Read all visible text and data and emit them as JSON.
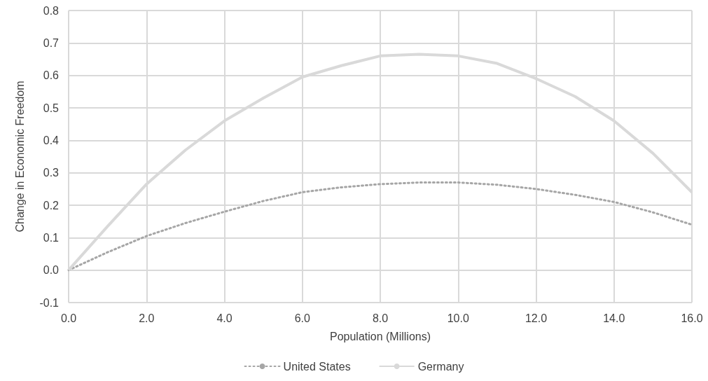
{
  "chart_data": {
    "type": "line",
    "xlabel": "Population (Millions)",
    "ylabel": "Change in Economic Freedom",
    "xlim": [
      0,
      16
    ],
    "ylim": [
      -0.1,
      0.8
    ],
    "xticks": [
      {
        "value": 0,
        "label": "0.0"
      },
      {
        "value": 2,
        "label": "2.0"
      },
      {
        "value": 4,
        "label": "4.0"
      },
      {
        "value": 6,
        "label": "6.0"
      },
      {
        "value": 8,
        "label": "8.0"
      },
      {
        "value": 10,
        "label": "10.0"
      },
      {
        "value": 12,
        "label": "12.0"
      },
      {
        "value": 14,
        "label": "14.0"
      },
      {
        "value": 16,
        "label": "16.0"
      }
    ],
    "yticks": [
      {
        "value": -0.1,
        "label": "-0.1"
      },
      {
        "value": 0,
        "label": "0.0"
      },
      {
        "value": 0.1,
        "label": "0.1"
      },
      {
        "value": 0.2,
        "label": "0.2"
      },
      {
        "value": 0.3,
        "label": "0.3"
      },
      {
        "value": 0.4,
        "label": "0.4"
      },
      {
        "value": 0.5,
        "label": "0.5"
      },
      {
        "value": 0.6,
        "label": "0.6"
      },
      {
        "value": 0.7,
        "label": "0.7"
      },
      {
        "value": 0.8,
        "label": "0.8"
      }
    ],
    "grid": true,
    "legend": "bottom",
    "marker": "none",
    "series": [
      {
        "name": "United States",
        "color": "#a6a6a6",
        "line_style": "dotted",
        "x": [
          0,
          1,
          2,
          3,
          4,
          5,
          6,
          7,
          8,
          9,
          10,
          11,
          12,
          13,
          14,
          15,
          16
        ],
        "values": [
          0,
          0.055,
          0.105,
          0.145,
          0.18,
          0.213,
          0.24,
          0.255,
          0.265,
          0.27,
          0.27,
          0.263,
          0.25,
          0.232,
          0.21,
          0.178,
          0.14
        ]
      },
      {
        "name": "Germany",
        "color": "#d9d9d9",
        "line_style": "solid",
        "x": [
          0,
          1,
          2,
          3,
          4,
          5,
          6,
          7,
          8,
          9,
          10,
          11,
          12,
          13,
          14,
          15,
          16
        ],
        "values": [
          0,
          0.135,
          0.265,
          0.37,
          0.46,
          0.53,
          0.595,
          0.63,
          0.66,
          0.665,
          0.66,
          0.637,
          0.59,
          0.535,
          0.46,
          0.36,
          0.24
        ]
      }
    ]
  }
}
